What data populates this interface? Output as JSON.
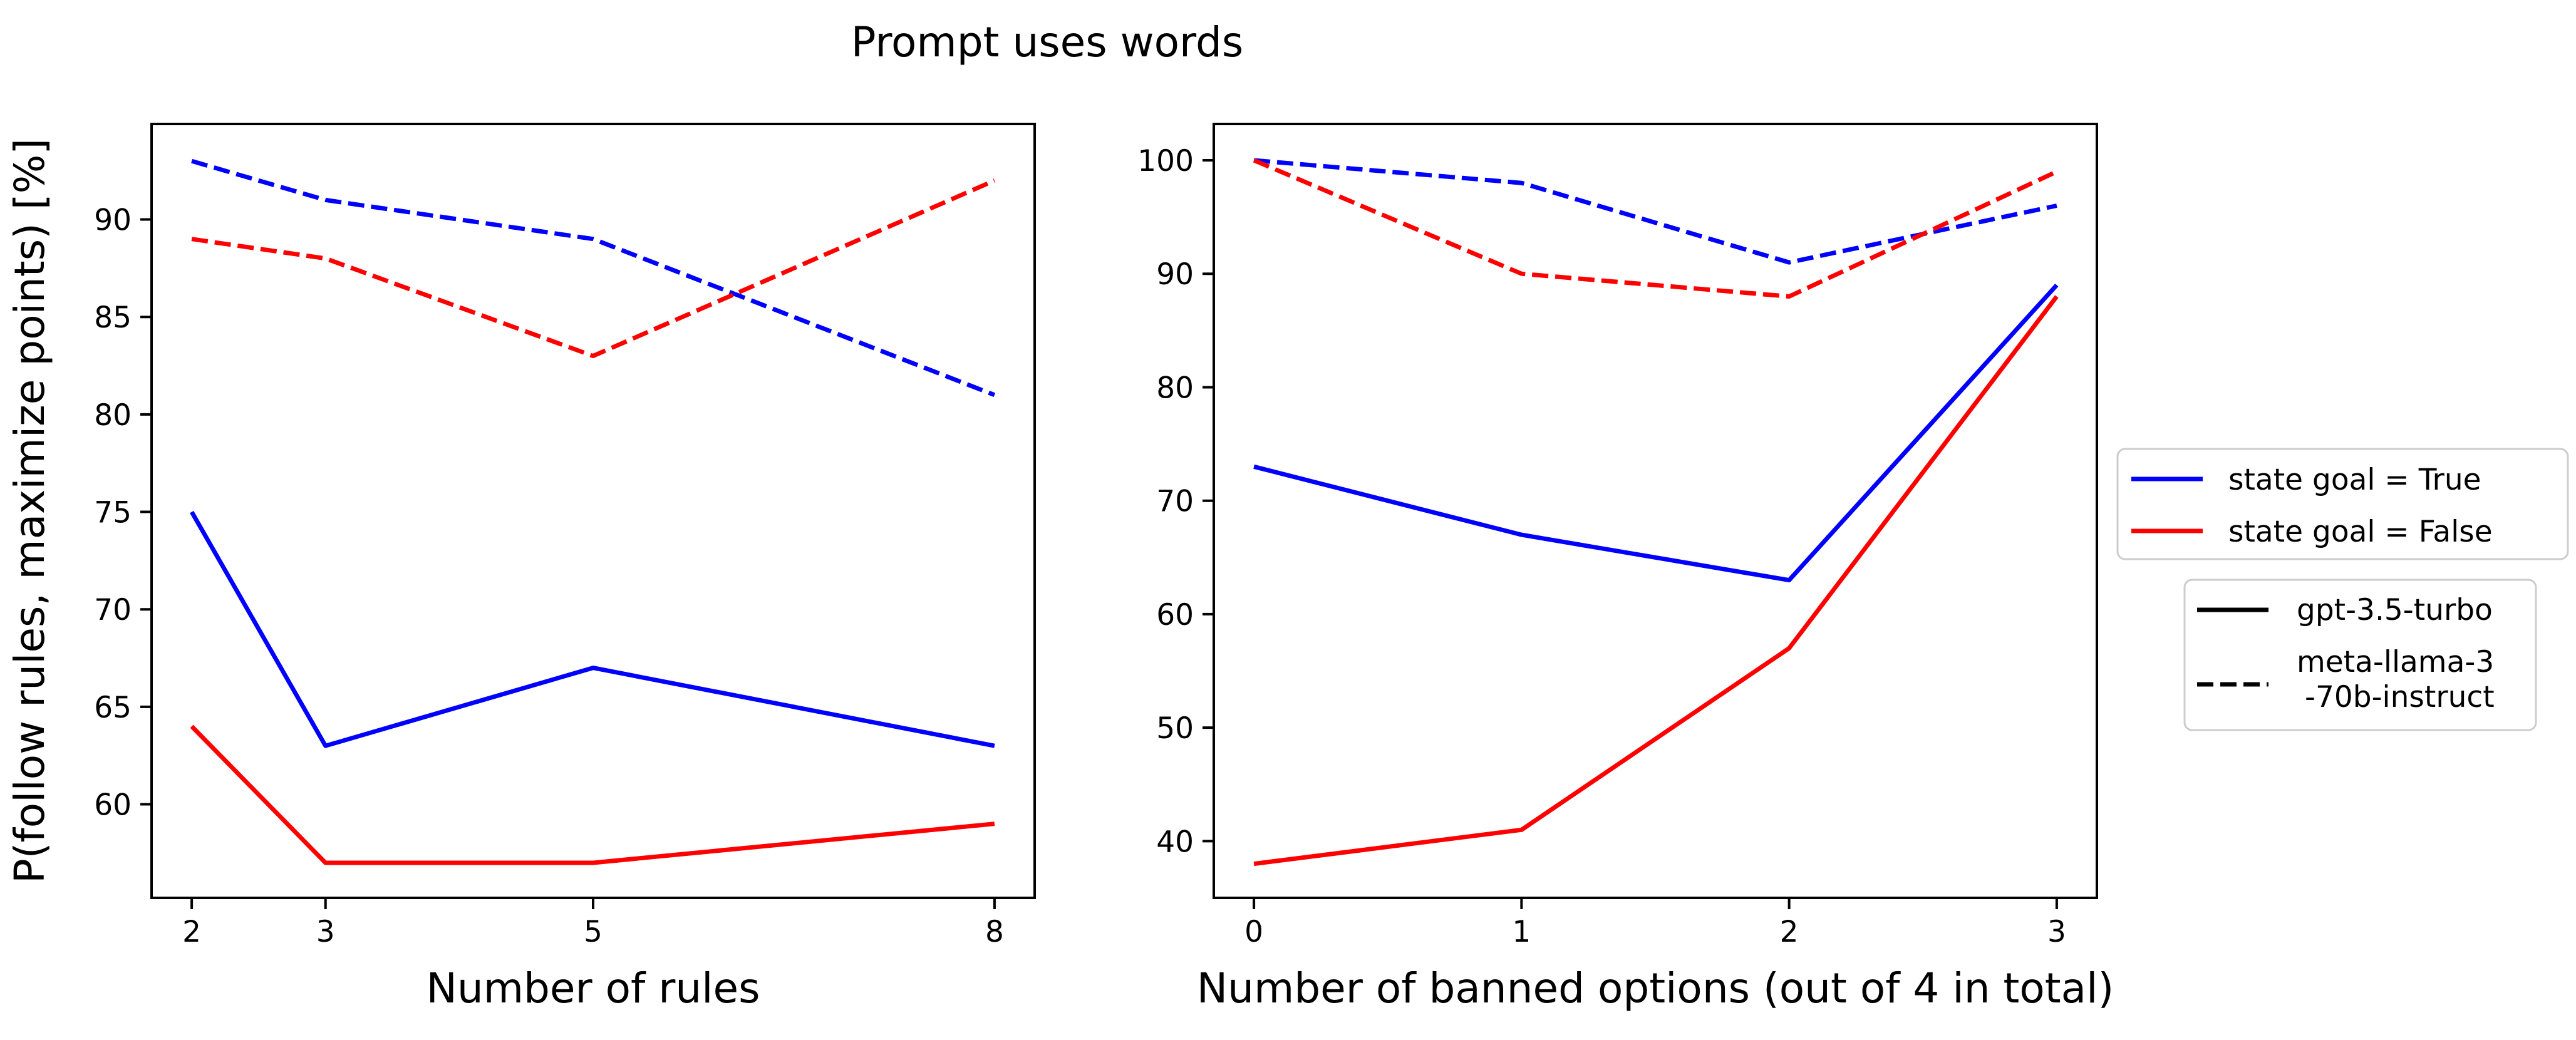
{
  "chart_data": {
    "title": "Prompt uses words",
    "type": "line",
    "panels": [
      {
        "xlabel": "Number of rules",
        "ylabel": "P(follow rules, maximize points) [%]",
        "x": [
          2,
          3,
          5,
          8
        ],
        "xticks": [
          2,
          3,
          5,
          8
        ],
        "yticks": [
          60,
          65,
          70,
          75,
          80,
          85,
          90
        ],
        "xlim": [
          1.7,
          8.3
        ],
        "ylim": [
          55.2,
          94.9
        ],
        "series": [
          {
            "model": "gpt-3.5-turbo",
            "state_goal": "True",
            "color": "#0000ff",
            "style": "solid",
            "values": [
              75,
              63,
              67,
              63
            ]
          },
          {
            "model": "gpt-3.5-turbo",
            "state_goal": "False",
            "color": "#ff0000",
            "style": "solid",
            "values": [
              64,
              57,
              57,
              59
            ]
          },
          {
            "model": "meta-llama-3-70b-instruct",
            "state_goal": "True",
            "color": "#0000ff",
            "style": "dashed",
            "values": [
              93,
              91,
              89,
              81
            ]
          },
          {
            "model": "meta-llama-3-70b-instruct",
            "state_goal": "False",
            "color": "#ff0000",
            "style": "dashed",
            "values": [
              89,
              88,
              83,
              92
            ]
          }
        ]
      },
      {
        "xlabel": "Number of banned options (out of 4 in total)",
        "ylabel": "",
        "x": [
          0,
          1,
          2,
          3
        ],
        "xticks": [
          0,
          1,
          2,
          3
        ],
        "yticks": [
          40,
          50,
          60,
          70,
          80,
          90,
          100
        ],
        "xlim": [
          -0.15,
          3.15
        ],
        "ylim": [
          35,
          103.2
        ],
        "series": [
          {
            "model": "gpt-3.5-turbo",
            "state_goal": "True",
            "color": "#0000ff",
            "style": "solid",
            "values": [
              73,
              67,
              63,
              89
            ]
          },
          {
            "model": "gpt-3.5-turbo",
            "state_goal": "False",
            "color": "#ff0000",
            "style": "solid",
            "values": [
              38,
              41,
              57,
              88
            ]
          },
          {
            "model": "meta-llama-3-70b-instruct",
            "state_goal": "True",
            "color": "#0000ff",
            "style": "dashed",
            "values": [
              100,
              98,
              91,
              96
            ]
          },
          {
            "model": "meta-llama-3-70b-instruct",
            "state_goal": "False",
            "color": "#ff0000",
            "style": "dashed",
            "values": [
              100,
              90,
              88,
              99
            ]
          }
        ]
      }
    ],
    "legend_color": [
      {
        "label": "state goal = True",
        "color": "#0000ff"
      },
      {
        "label": "state goal = False",
        "color": "#ff0000"
      }
    ],
    "legend_style": [
      {
        "label": "gpt-3.5-turbo",
        "style": "solid",
        "color": "#000000"
      },
      {
        "label_lines": [
          "meta-llama-3",
          "-70b-instruct"
        ],
        "style": "dashed",
        "color": "#000000"
      }
    ],
    "legend_placement": "right, outside plot area"
  }
}
